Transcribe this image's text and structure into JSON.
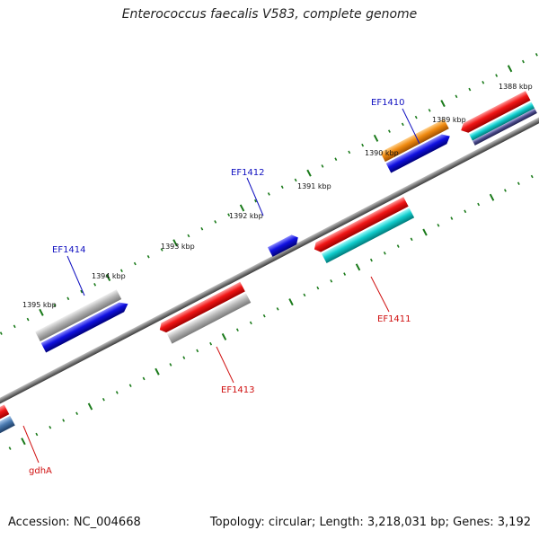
{
  "title": "Enterococcus faecalis V583, complete genome",
  "footer": {
    "accession": "Accession: NC_004668",
    "summary": "Topology: circular; Length: 3,218,031 bp; Genes: 3,192"
  },
  "colors": {
    "backbone": "#7a7a7a",
    "tick": "#1a7a1a",
    "label_forward": "#1010c0",
    "label_reverse": "#d01010"
  },
  "map": {
    "kbp_labels": [
      {
        "text": "1388 kbp"
      },
      {
        "text": "1389 kbp"
      },
      {
        "text": "1390 kbp"
      },
      {
        "text": "1391 kbp"
      },
      {
        "text": "1392 kbp"
      },
      {
        "text": "1393 kbp"
      },
      {
        "text": "1394 kbp"
      },
      {
        "text": "1395 kbp"
      }
    ],
    "gene_labels": [
      {
        "text": "EF1410",
        "strand": "forward"
      },
      {
        "text": "EF1412",
        "strand": "forward"
      },
      {
        "text": "EF1414",
        "strand": "forward"
      },
      {
        "text": "EF1411",
        "strand": "reverse"
      },
      {
        "text": "EF1413",
        "strand": "reverse"
      },
      {
        "text": "gdhA",
        "strand": "reverse"
      }
    ],
    "features": [
      {
        "name": "orange",
        "color": "#f08a10"
      },
      {
        "name": "blue",
        "color": "#1010e0"
      },
      {
        "name": "red",
        "color": "#f01515"
      },
      {
        "name": "cyan",
        "color": "#10cccc"
      },
      {
        "name": "gray",
        "color": "#b4b4b4"
      },
      {
        "name": "steel",
        "color": "#4a7ab0"
      },
      {
        "name": "navy",
        "color": "#505090"
      }
    ]
  }
}
